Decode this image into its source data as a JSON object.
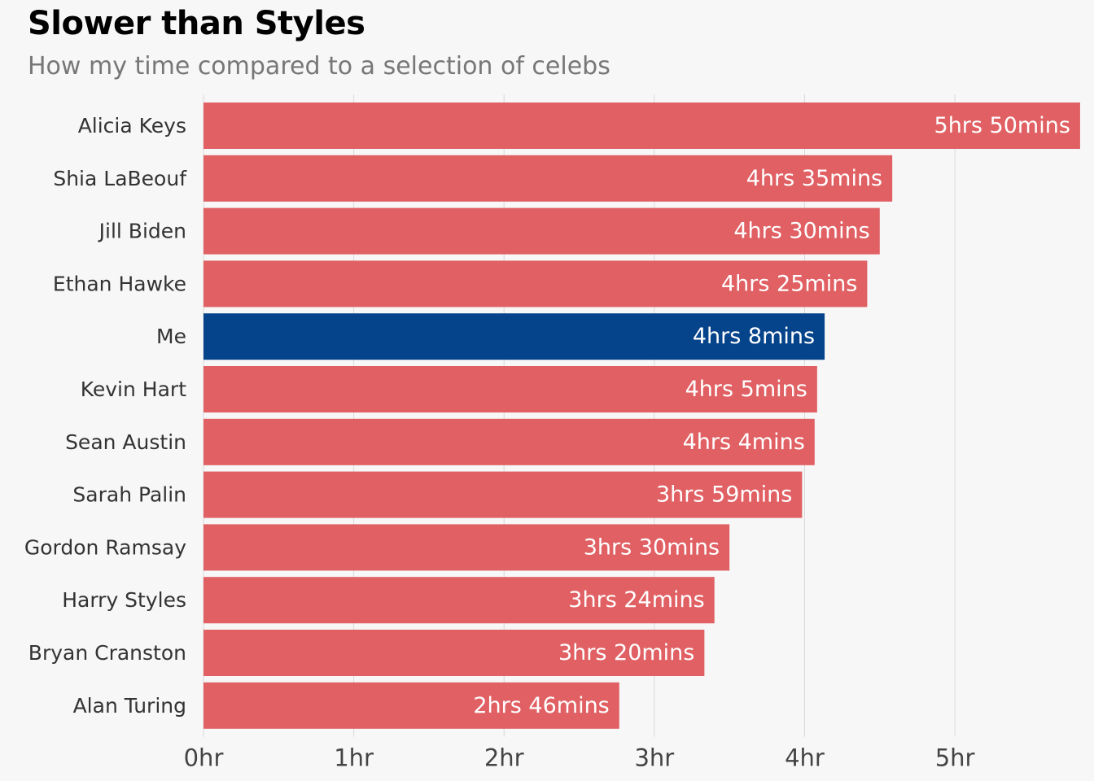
{
  "chart_data": {
    "type": "bar",
    "orientation": "horizontal",
    "title": "Slower than Styles",
    "subtitle": "How my time compared to a selection of celebs",
    "xlabel": "",
    "ylabel": "",
    "xlim": [
      0,
      5.85
    ],
    "x_ticks": [
      {
        "value": 0,
        "label": "0hr"
      },
      {
        "value": 1,
        "label": "1hr"
      },
      {
        "value": 2,
        "label": "2hr"
      },
      {
        "value": 3,
        "label": "3hr"
      },
      {
        "value": 4,
        "label": "4hr"
      },
      {
        "value": 5,
        "label": "5hr"
      }
    ],
    "grid": true,
    "colors": {
      "default": "#e06063",
      "highlight": "#05438a"
    },
    "categories": [
      "Alicia Keys",
      "Shia LaBeouf",
      "Jill Biden",
      "Ethan Hawke",
      "Me",
      "Kevin Hart",
      "Sean Austin",
      "Sarah Palin",
      "Gordon Ramsay",
      "Harry Styles",
      "Bryan Cranston",
      "Alan Turing"
    ],
    "values": [
      5.8333,
      4.5833,
      4.5,
      4.4167,
      4.1333,
      4.0833,
      4.0667,
      3.9833,
      3.5,
      3.4,
      3.3333,
      2.7667
    ],
    "labels": [
      "5hrs 50mins",
      "4hrs 35mins",
      "4hrs 30mins",
      "4hrs 25mins",
      "4hrs 8mins",
      "4hrs 5mins",
      "4hrs 4mins",
      "3hrs 59mins",
      "3hrs 30mins",
      "3hrs 24mins",
      "3hrs 20mins",
      "2hrs 46mins"
    ],
    "highlight": "Me"
  }
}
